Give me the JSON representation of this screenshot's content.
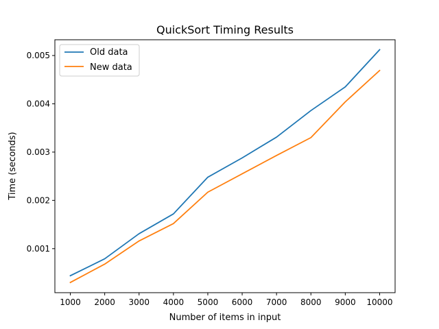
{
  "chart_data": {
    "type": "line",
    "title": "QuickSort Timing Results",
    "xlabel": "Number of items in input",
    "ylabel": "Time (seconds)",
    "x": [
      1000,
      2000,
      3000,
      4000,
      5000,
      6000,
      7000,
      8000,
      9000,
      10000
    ],
    "xticks": [
      "1000",
      "2000",
      "3000",
      "4000",
      "5000",
      "6000",
      "7000",
      "8000",
      "9000",
      "10000"
    ],
    "yticks": [
      0.001,
      0.002,
      0.003,
      0.004,
      0.005
    ],
    "ytick_labels": [
      "0.001",
      "0.002",
      "0.003",
      "0.004",
      "0.005"
    ],
    "xlim": [
      550,
      10450
    ],
    "ylim": [
      8.85e-05,
      0.0053265
    ],
    "grid": false,
    "legend_position": "top-left",
    "series": [
      {
        "name": "Old data",
        "color": "#1f77b4",
        "values": [
          0.00044,
          0.00079,
          0.00131,
          0.00172,
          0.00248,
          0.00288,
          0.00331,
          0.00386,
          0.00435,
          0.00512
        ]
      },
      {
        "name": "New data",
        "color": "#ff7f0e",
        "values": [
          0.0003,
          0.00068,
          0.00116,
          0.00152,
          0.00217,
          0.00255,
          0.00293,
          0.0033,
          0.00404,
          0.00469
        ]
      }
    ]
  }
}
